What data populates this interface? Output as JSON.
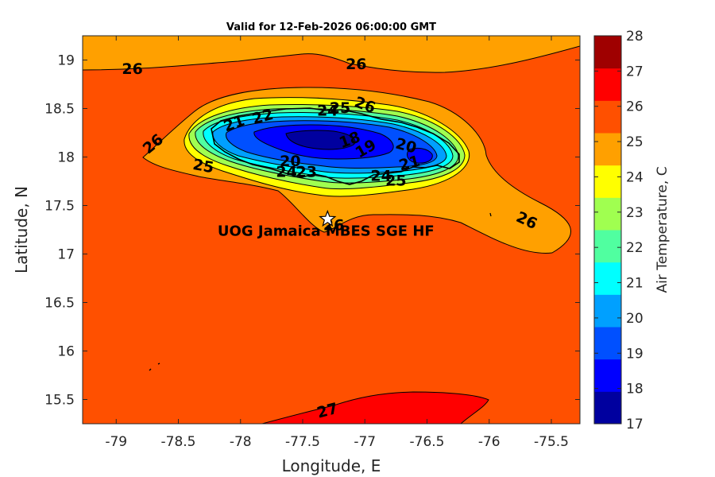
{
  "chart_data": {
    "type": "contour-map",
    "title": "Valid for 12-Feb-2026 06:00:00 GMT",
    "xlabel": "Longitude, E",
    "ylabel": "Latitude, N",
    "xlim": [
      -79.27,
      -75.27
    ],
    "ylim": [
      15.25,
      19.25
    ],
    "x_ticks": [
      -79,
      -78.5,
      -78,
      -77.5,
      -77,
      -76.5,
      -76,
      -75.5
    ],
    "x_tick_labels": [
      "-79",
      "-78.5",
      "-78",
      "-77.5",
      "-77",
      "-76.5",
      "-76",
      "-75.5"
    ],
    "y_ticks": [
      19,
      18.5,
      18,
      17.5,
      17,
      16.5,
      16,
      15.5
    ],
    "y_tick_labels": [
      "19",
      "18.5",
      "18",
      "17.5",
      "17",
      "16.5",
      "16",
      "15.5"
    ],
    "colorbar": {
      "label": "Air Temperature, C",
      "min": 17,
      "max": 28,
      "ticks": [
        "17",
        "18",
        "19",
        "20",
        "21",
        "22",
        "23",
        "24",
        "25",
        "26",
        "27",
        "28"
      ],
      "colors": [
        "#00009f",
        "#0000ff",
        "#0050ff",
        "#00a0ff",
        "#00ffff",
        "#50ffa0",
        "#a0ff50",
        "#ffff00",
        "#ffa000",
        "#ff5000",
        "#ff0000",
        "#9f0000"
      ]
    },
    "background_level_color": "#ff5000",
    "contour_labels": [
      {
        "text": "26",
        "lon": -78.87,
        "lat": 18.9,
        "angle": 0
      },
      {
        "text": "26",
        "lon": -77.07,
        "lat": 18.95,
        "angle": 0
      },
      {
        "text": "26",
        "lon": -78.7,
        "lat": 18.13,
        "angle": -40
      },
      {
        "text": "26",
        "lon": -77.25,
        "lat": 17.29,
        "angle": 0
      },
      {
        "text": "26",
        "lon": -75.7,
        "lat": 17.34,
        "angle": 25
      },
      {
        "text": "26",
        "lon": -77.0,
        "lat": 18.53,
        "angle": 20
      },
      {
        "text": "25",
        "lon": -77.2,
        "lat": 18.5,
        "angle": 0
      },
      {
        "text": "24",
        "lon": -77.3,
        "lat": 18.47,
        "angle": 0
      },
      {
        "text": "21",
        "lon": -78.05,
        "lat": 18.34,
        "angle": -20
      },
      {
        "text": "22",
        "lon": -77.82,
        "lat": 18.41,
        "angle": -15
      },
      {
        "text": "18",
        "lon": -77.12,
        "lat": 18.17,
        "angle": -20
      },
      {
        "text": "19",
        "lon": -76.99,
        "lat": 18.08,
        "angle": -30
      },
      {
        "text": "20",
        "lon": -76.67,
        "lat": 18.11,
        "angle": 15
      },
      {
        "text": "20",
        "lon": -77.6,
        "lat": 17.95,
        "angle": 0
      },
      {
        "text": "25",
        "lon": -78.3,
        "lat": 17.9,
        "angle": 10
      },
      {
        "text": "24",
        "lon": -77.63,
        "lat": 17.84,
        "angle": 0
      },
      {
        "text": "23",
        "lon": -77.47,
        "lat": 17.84,
        "angle": 0
      },
      {
        "text": "21",
        "lon": -76.64,
        "lat": 17.93,
        "angle": -15
      },
      {
        "text": "24",
        "lon": -76.87,
        "lat": 17.8,
        "angle": 0
      },
      {
        "text": "25",
        "lon": -76.75,
        "lat": 17.75,
        "angle": 0
      },
      {
        "text": "27",
        "lon": -77.3,
        "lat": 15.38,
        "angle": -15
      }
    ],
    "site": {
      "name": "UOG Jamaica MBES SGE HF",
      "lon": -77.3,
      "lat": 17.36
    }
  }
}
